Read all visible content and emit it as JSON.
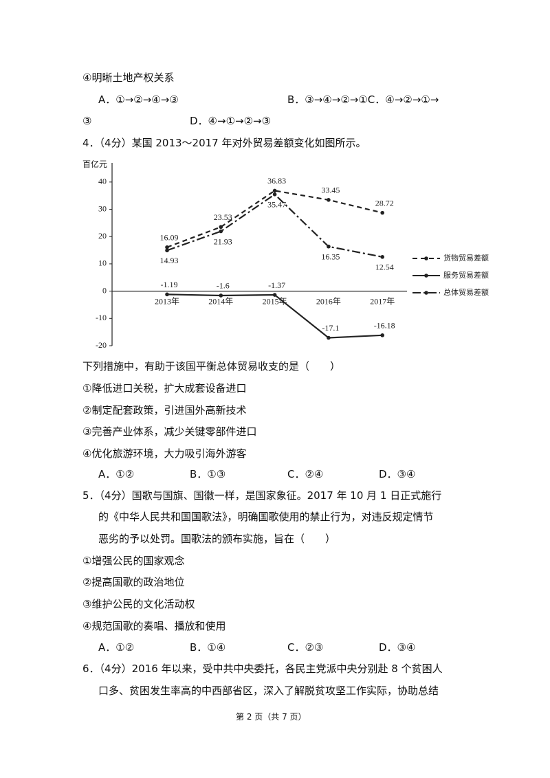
{
  "q3": {
    "item": "④明晰土地产权关系",
    "options": [
      "A．①→②→④→③",
      "B．③→④→②→①C．④→②→①→",
      "③",
      "D．④→①→②→③"
    ]
  },
  "q4": {
    "stem": "4．（4分）某国 2013～2017 年对外贸易差额变化如图所示。",
    "question": "下列措施中，有助于该国平衡总体贸易收支的是（　　）",
    "items": [
      "①降低进口关税，扩大成套设备进口",
      "②制定配套政策，引进国外高新技术",
      "③完善产业体系，减少关键零部件进口",
      "④优化旅游环境，大力吸引海外游客"
    ],
    "options": [
      "A．①②",
      "B．①③",
      "C．②④",
      "D．③④"
    ]
  },
  "chart_data": {
    "type": "line",
    "y_label": "百亿元",
    "categories": [
      "2013年",
      "2014年",
      "2015年",
      "2016年",
      "2017年"
    ],
    "series": [
      {
        "name": "货物贸易差额",
        "color": "#222222",
        "style": "dashed",
        "values": [
          16.09,
          23.53,
          36.83,
          33.45,
          28.72
        ]
      },
      {
        "name": "服务贸易差额",
        "color": "#222222",
        "style": "solid",
        "values": [
          -1.19,
          -1.6,
          -1.37,
          -17.1,
          -16.18
        ]
      },
      {
        "name": "总体贸易差额",
        "color": "#222222",
        "style": "dashdot",
        "values": [
          14.93,
          21.93,
          35.47,
          16.35,
          12.54
        ]
      }
    ],
    "ylim": [
      -20,
      45
    ],
    "yticks": [
      -20,
      -10,
      0,
      10,
      20,
      30,
      40
    ],
    "grid": false,
    "legend": "right"
  },
  "q5": {
    "stem": [
      "5．（4分）国歌与国旗、国徽一样，是国家象征。2017 年 10 月 1 日正式施行",
      "的《中华人民共和国国歌法》，明确国歌使用的禁止行为，对违反规定情节",
      "恶劣的予以处罚。国歌法的颁布实施，旨在（　　）"
    ],
    "items": [
      "①增强公民的国家观念",
      "②提高国歌的政治地位",
      "③维护公民的文化活动权",
      "④规范国歌的奏唱、播放和使用"
    ],
    "options": [
      "A．①②",
      "B．①④",
      "C．②③",
      "D．③④"
    ]
  },
  "q6": {
    "stem": [
      "6．（4分）2016 年以来，受中共中央委托，各民主党派中央分别赴 8 个贫困人",
      "口多、贫困发生率高的中西部省区，深入了解脱贫攻坚工作实际，协助总结"
    ]
  },
  "footer": "第 2 页（共 7 页）"
}
